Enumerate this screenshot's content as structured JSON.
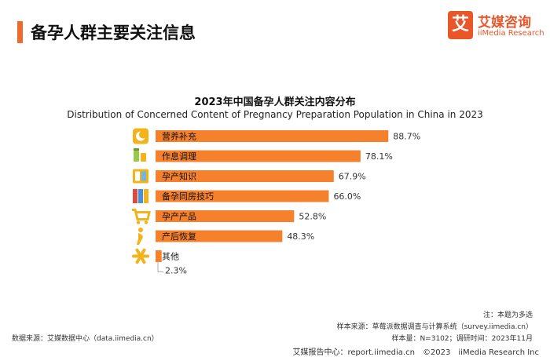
{
  "header": {
    "title": "备孕人群主要关注信息"
  },
  "logo": {
    "mark": "艾",
    "name_cn": "艾媒咨询",
    "name_en": "iiMedia Research"
  },
  "chart_data": {
    "type": "bar",
    "orientation": "horizontal",
    "title": "2023年中国备孕人群关注内容分布",
    "subtitle": "Distribution of Concerned Content of Pregnancy Preparation Population in China in 2023",
    "categories": [
      "营养补充",
      "作息调理",
      "孕产知识",
      "备孕同房技巧",
      "孕产产品",
      "产后恢复",
      "其他"
    ],
    "values": [
      88.7,
      78.1,
      67.9,
      66.0,
      52.8,
      48.3,
      2.3
    ],
    "value_labels": [
      "88.7%",
      "78.1%",
      "67.9%",
      "66.0%",
      "52.8%",
      "48.3%",
      "2.3%"
    ],
    "icons": [
      "moon-icon",
      "bottles-icon",
      "book-icon",
      "books-icon",
      "cart-icon",
      "figure-icon",
      "asterisk-icon"
    ],
    "xlim": [
      0,
      100
    ],
    "grid": false,
    "legend": "none",
    "color": "#f5812d",
    "icon_color": "#f2b31b"
  },
  "notes": {
    "note": "注：本题为多选",
    "sample_source": "样本来源：草莓派数据调查与计算系统（survey.iimedia.cn）",
    "sample_info": "样本量：N=3102；调研时间：2023年11月",
    "data_source": "数据来源：艾媒数据中心（data.iimedia.cn）"
  },
  "footer": {
    "text": "艾媒报告中心：report.iimedia.cn　©2023　iiMedia Research  Inc"
  }
}
